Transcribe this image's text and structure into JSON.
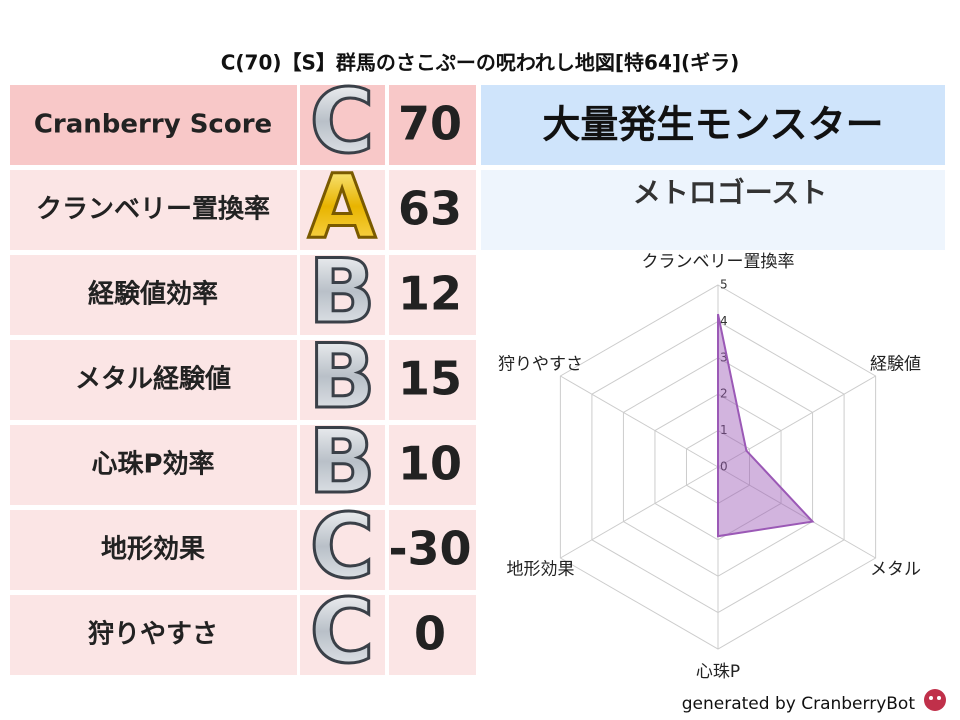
{
  "header": {
    "title": "C(70)【S】群馬のさこぷーの呪われし地図[特64](ギラ)"
  },
  "table": {
    "rows": [
      [
        "Cranberry Score",
        "C",
        70
      ],
      [
        "クランベリー置換率",
        "A",
        63
      ],
      [
        "経験値効率",
        "B",
        12
      ],
      [
        "メタル経験値",
        "B",
        15
      ],
      [
        "心珠P効率",
        "B",
        10
      ],
      [
        "地形効果",
        "C",
        -30
      ],
      [
        "狩りやすさ",
        "C",
        0
      ]
    ]
  },
  "monster": {
    "heading": "大量発生モンスター",
    "name": "メトロゴースト"
  },
  "chart_data": {
    "type": "radar",
    "categories": [
      "クランベリー置換率",
      "経験値",
      "メタル",
      "心珠P",
      "地形効果",
      "狩りやすさ"
    ],
    "values": [
      4.2,
      0.9,
      3.0,
      1.9,
      0,
      0
    ],
    "rlim": [
      0,
      5
    ],
    "rticks": [
      0,
      1,
      2,
      3,
      4,
      5
    ],
    "color": "#9b59b6"
  },
  "footer": {
    "credit": "generated by CranberryBot"
  }
}
